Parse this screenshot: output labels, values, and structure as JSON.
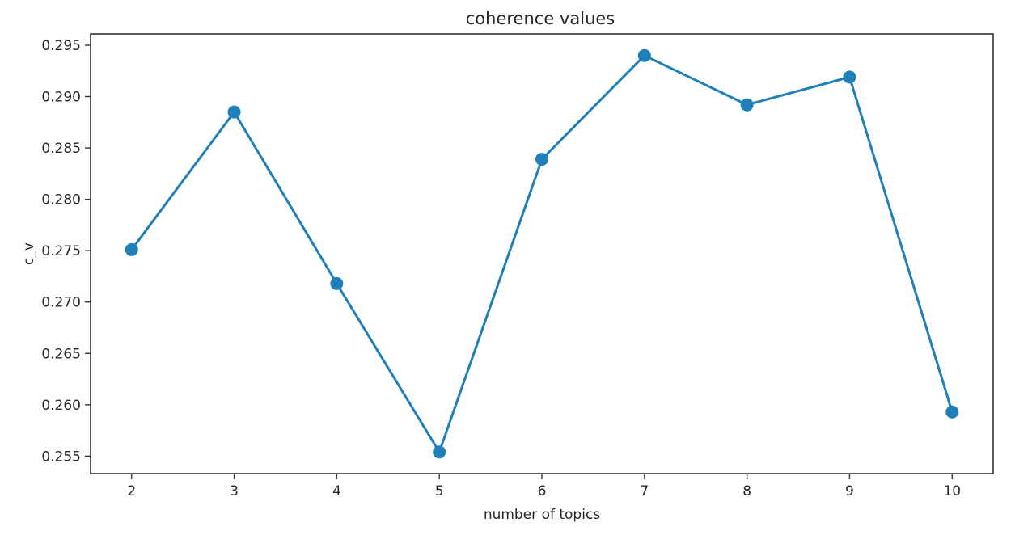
{
  "chart_data": {
    "type": "line",
    "title": "coherence values",
    "xlabel": "number of topics",
    "ylabel": "c_v",
    "x": [
      2,
      3,
      4,
      5,
      6,
      7,
      8,
      9,
      10
    ],
    "series": [
      {
        "values": [
          0.2751,
          0.2885,
          0.2718,
          0.2554,
          0.2839,
          0.294,
          0.2892,
          0.2919,
          0.2593
        ],
        "color": "#1f7fb8",
        "marker": "circle"
      }
    ],
    "xticks": [
      "2",
      "3",
      "4",
      "5",
      "6",
      "7",
      "8",
      "9",
      "10"
    ],
    "yticks": [
      "0.255",
      "0.260",
      "0.265",
      "0.270",
      "0.275",
      "0.280",
      "0.285",
      "0.290",
      "0.295"
    ],
    "xlim": [
      1.6,
      10.4
    ],
    "ylim": [
      0.2533,
      0.2961
    ],
    "grid": false,
    "legend": false
  }
}
